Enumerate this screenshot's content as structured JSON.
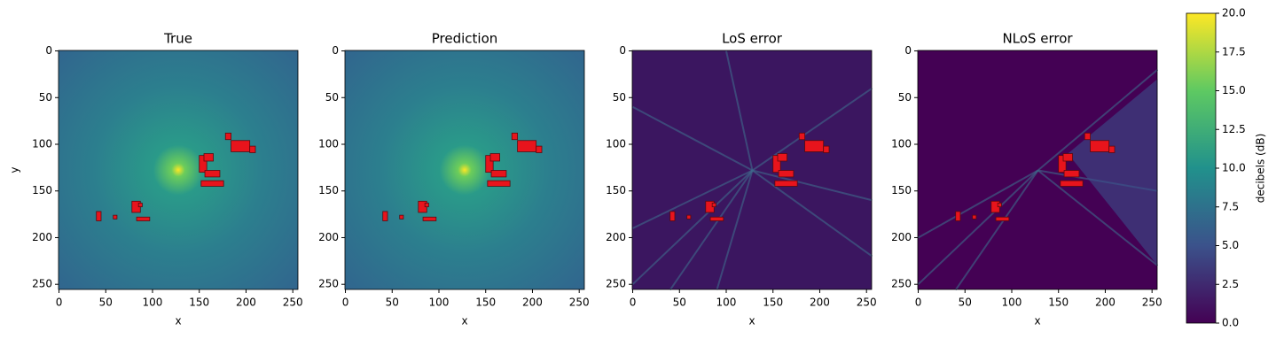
{
  "chart_data": [
    {
      "type": "heatmap",
      "title": "True",
      "xlabel": "x",
      "ylabel": "y",
      "xlim": [
        -0.5,
        255.5
      ],
      "ylim": [
        255.5,
        -0.5
      ],
      "xticks": [
        0,
        50,
        100,
        150,
        200,
        250
      ],
      "yticks": [
        0,
        50,
        100,
        150,
        200,
        250
      ]
    },
    {
      "type": "heatmap",
      "title": "Prediction",
      "xlabel": "x",
      "xlim": [
        -0.5,
        255.5
      ],
      "ylim": [
        255.5,
        -0.5
      ],
      "xticks": [
        0,
        50,
        100,
        150,
        200,
        250
      ],
      "yticks": [
        0,
        50,
        100,
        150,
        200,
        250
      ]
    },
    {
      "type": "heatmap",
      "title": "LoS error",
      "xlabel": "x",
      "xlim": [
        -0.5,
        255.5
      ],
      "ylim": [
        255.5,
        -0.5
      ],
      "xticks": [
        0,
        50,
        100,
        150,
        200,
        250
      ],
      "yticks": [
        0,
        50,
        100,
        150,
        200,
        250
      ]
    },
    {
      "type": "heatmap",
      "title": "NLoS error",
      "xlabel": "x",
      "xlim": [
        -0.5,
        255.5
      ],
      "ylim": [
        255.5,
        -0.5
      ],
      "xticks": [
        0,
        50,
        100,
        150,
        200,
        250
      ],
      "yticks": [
        0,
        50,
        100,
        150,
        200,
        250
      ]
    }
  ],
  "colorbar": {
    "label": "decibels (dB)",
    "lim": [
      0,
      20
    ],
    "colors": [
      "#440154",
      "#3b528b",
      "#21918c",
      "#5ec962",
      "#fde725"
    ],
    "ticks": [
      {
        "value": 0,
        "label": "0.0"
      },
      {
        "value": 2.5,
        "label": "2.5"
      },
      {
        "value": 5,
        "label": "5.0"
      },
      {
        "value": 7.5,
        "label": "7.5"
      },
      {
        "value": 10,
        "label": "10.0"
      },
      {
        "value": 12.5,
        "label": "12.5"
      },
      {
        "value": 15,
        "label": "15.0"
      },
      {
        "value": 17.5,
        "label": "17.5"
      },
      {
        "value": 20,
        "label": "20.0"
      }
    ]
  }
}
